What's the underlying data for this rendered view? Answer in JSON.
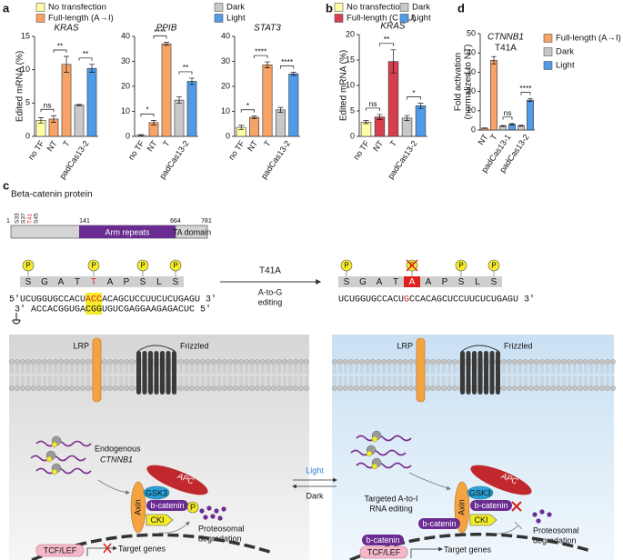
{
  "panels": [
    "a",
    "b",
    "c",
    "d"
  ],
  "chart_data": [
    {
      "type": "bar",
      "title": "KRAS",
      "ylabel": "Edited mRNA (%)",
      "categories": [
        "no TF",
        "NT",
        "T",
        null,
        null
      ],
      "groups": [
        {
          "label": "padCas13-2",
          "categories": [
            3,
            4
          ]
        }
      ],
      "values": [
        2.4,
        2.6,
        10.8,
        4.7,
        10.2
      ],
      "errors": [
        0.4,
        0.5,
        1.2,
        0.1,
        0.6
      ],
      "colors": [
        "#ffffa8",
        "#f7a266",
        "#f7a266",
        "#c8c8c8",
        "#4f9be8"
      ],
      "ylim": [
        0,
        15
      ],
      "yticks": [
        0,
        5,
        10,
        15
      ],
      "significance": [
        {
          "label": "ns",
          "categories": [
            0,
            1
          ]
        },
        {
          "label": "**",
          "categories": [
            1,
            2
          ]
        },
        {
          "label": "**",
          "categories": [
            3,
            4
          ]
        }
      ],
      "legend": [
        {
          "name": "No transfection",
          "color": "#ffffa8"
        },
        {
          "name": "Full-length (A→I)",
          "color": "#f7a266"
        },
        {
          "name": "Dark",
          "color": "#c8c8c8"
        },
        {
          "name": "Light",
          "color": "#4f9be8"
        }
      ]
    },
    {
      "type": "bar",
      "title": "PPIB",
      "categories": [
        "no TF",
        "NT",
        "T",
        null,
        null
      ],
      "groups": [
        {
          "label": "padCas13-2",
          "categories": [
            3,
            4
          ]
        }
      ],
      "values": [
        0.4,
        5.5,
        37,
        14.5,
        22
      ],
      "errors": [
        0.3,
        0.9,
        0.6,
        1.3,
        1.3
      ],
      "colors": [
        "#ffffa8",
        "#f7a266",
        "#f7a266",
        "#c8c8c8",
        "#4f9be8"
      ],
      "ylim": [
        0,
        40
      ],
      "yticks": [
        0,
        10,
        20,
        30,
        40
      ],
      "significance": [
        {
          "label": "*",
          "categories": [
            0,
            1
          ]
        },
        {
          "label": "****",
          "categories": [
            1,
            2
          ]
        },
        {
          "label": "**",
          "categories": [
            3,
            4
          ]
        }
      ]
    },
    {
      "type": "bar",
      "title": "STAT3",
      "categories": [
        "no TF",
        "NT",
        "T",
        null,
        null
      ],
      "groups": [
        {
          "label": "padCas13-2",
          "categories": [
            3,
            4
          ]
        }
      ],
      "values": [
        3.6,
        7.6,
        28.6,
        10.6,
        25
      ],
      "errors": [
        0.8,
        0.5,
        1.2,
        1.0,
        0.6
      ],
      "colors": [
        "#ffffa8",
        "#f7a266",
        "#f7a266",
        "#c8c8c8",
        "#4f9be8"
      ],
      "ylim": [
        0,
        40
      ],
      "yticks": [
        0,
        10,
        20,
        30,
        40
      ],
      "significance": [
        {
          "label": "*",
          "categories": [
            0,
            1
          ]
        },
        {
          "label": "****",
          "categories": [
            1,
            2
          ]
        },
        {
          "label": "****",
          "categories": [
            3,
            4
          ]
        }
      ]
    },
    {
      "type": "bar",
      "title": "KRAS",
      "ylabel": "Edited mRNA (%)",
      "categories": [
        "no TF",
        "NT",
        "T",
        null,
        null
      ],
      "groups": [
        {
          "label": "padCas13-2",
          "categories": [
            3,
            4
          ]
        }
      ],
      "values": [
        2.8,
        3.8,
        14.7,
        3.6,
        6.0
      ],
      "errors": [
        0.3,
        0.5,
        2.3,
        0.5,
        0.5
      ],
      "colors": [
        "#ffffa8",
        "#d6404e",
        "#d6404e",
        "#c8c8c8",
        "#4f9be8"
      ],
      "ylim": [
        0,
        20
      ],
      "yticks": [
        0,
        5,
        10,
        15,
        20
      ],
      "significance": [
        {
          "label": "ns",
          "categories": [
            0,
            1
          ]
        },
        {
          "label": "**",
          "categories": [
            1,
            2
          ]
        },
        {
          "label": "*",
          "categories": [
            3,
            4
          ]
        }
      ],
      "legend": [
        {
          "name": "No transfection",
          "color": "#ffffa8"
        },
        {
          "name": "Full-length (C→U)",
          "color": "#d6404e"
        },
        {
          "name": "Dark",
          "color": "#c8c8c8"
        },
        {
          "name": "Light",
          "color": "#4f9be8"
        }
      ]
    },
    {
      "type": "bar",
      "title": "CTNNB1",
      "subtitle": "T41A",
      "ylabel": [
        "Fold activation",
        "(normalized to NT)"
      ],
      "categories": [
        "NT",
        "T",
        null,
        null,
        null,
        null
      ],
      "groups": [
        {
          "label": "padCas13-1",
          "categories": [
            2,
            3
          ]
        },
        {
          "label": "padCas13-2",
          "categories": [
            4,
            5
          ]
        }
      ],
      "values": [
        1,
        36.2,
        2.1,
        3.0,
        2.2,
        15.5
      ],
      "errors": [
        0.1,
        1.9,
        0.2,
        0.4,
        0.2,
        0.7
      ],
      "colors": [
        "#f7a266",
        "#f7a266",
        "#c8c8c8",
        "#4f9be8",
        "#c8c8c8",
        "#4f9be8"
      ],
      "ylim": [
        0,
        50
      ],
      "yticks": [
        0,
        10,
        20,
        30,
        40,
        50
      ],
      "significance": [
        {
          "label": "ns",
          "categories": [
            2,
            3
          ]
        },
        {
          "label": "****",
          "categories": [
            4,
            5
          ]
        }
      ],
      "legend": [
        {
          "name": "Full-length (A→I)",
          "color": "#f7a266"
        },
        {
          "name": "Dark",
          "color": "#c8c8c8"
        },
        {
          "name": "Light",
          "color": "#4f9be8"
        }
      ]
    }
  ],
  "diagram": {
    "protein_title": "Beta-catenin protein",
    "positions": [
      "1",
      "141",
      "664",
      "781"
    ],
    "residues": [
      "S33",
      "S37",
      "T41",
      "S45"
    ],
    "domains": [
      "Arm repeats",
      "TA domain"
    ],
    "amino_acids": [
      "S",
      "G",
      "A",
      "T",
      "T",
      "A",
      "P",
      "S",
      "L",
      "S"
    ],
    "phospho": "P",
    "edited_aa": "A",
    "rna_top": [
      "5'UCUGGUGCCACU",
      "ACC",
      "ACAGCUCCUUCUCUGAGU 3'"
    ],
    "rna_bottom": [
      "3' ACCACGGUGA",
      "CGG",
      "UGUCGAGGAAGAGACUC 5'"
    ],
    "rna_edited": [
      "UCUGGUGCCACU",
      "G",
      "CCACAGCUCCUUCUCUGAGU 3'"
    ],
    "arrow_top": "T41A",
    "arrow_bottom": [
      "A-to-G",
      "editing"
    ],
    "cell": {
      "lrp": "LRP",
      "frizzled": "Frizzled",
      "endogenous": "Endogenous",
      "gene": "CTNNB1",
      "apc": "APC",
      "gsk3": "GSK3",
      "axin": "Axin",
      "bcatenin": "b-catenin",
      "cki": "CKI",
      "degradation": [
        "Proteosomal",
        "degradation"
      ],
      "tcf": "TCF/LEF",
      "target": "Target genes",
      "light": "Light",
      "dark": "Dark",
      "editing": [
        "Targeted A-to-I",
        "RNA editing"
      ]
    }
  }
}
